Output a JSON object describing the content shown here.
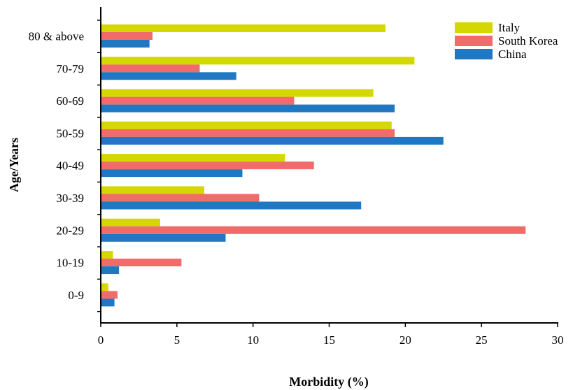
{
  "chart_data": {
    "type": "bar",
    "orientation": "horizontal",
    "title": "",
    "xlabel": "Morbidity (%)",
    "ylabel": "Age/Years",
    "xlim": [
      0,
      30
    ],
    "xticks": [
      0,
      5,
      10,
      15,
      20,
      25,
      30
    ],
    "grid": false,
    "legend_position": "top-right",
    "categories": [
      "80 & above",
      "70-79",
      "60-69",
      "50-59",
      "40-49",
      "30-39",
      "20-29",
      "10-19",
      "0-9"
    ],
    "series": [
      {
        "name": "Italy",
        "color": "#d4d800",
        "values": [
          18.7,
          20.6,
          17.9,
          19.1,
          12.1,
          6.8,
          3.9,
          0.8,
          0.5
        ]
      },
      {
        "name": "South Korea",
        "color": "#f26b6b",
        "values": [
          3.4,
          6.5,
          12.7,
          19.3,
          14.0,
          10.4,
          27.9,
          5.3,
          1.1
        ]
      },
      {
        "name": "China",
        "color": "#1f78c1",
        "values": [
          3.2,
          8.9,
          19.3,
          22.5,
          9.3,
          17.1,
          8.2,
          1.2,
          0.9
        ]
      }
    ]
  }
}
